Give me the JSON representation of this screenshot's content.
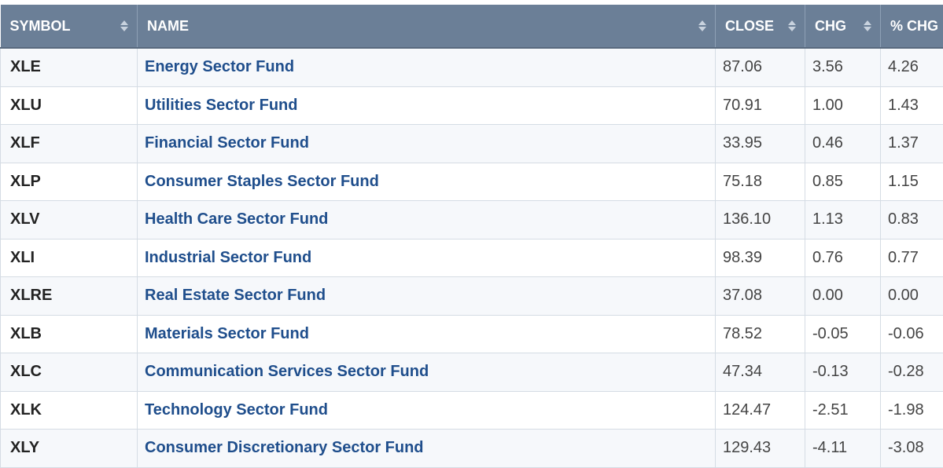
{
  "headers": {
    "symbol": "SYMBOL",
    "name": "NAME",
    "close": "CLOSE",
    "chg": "CHG",
    "pct_chg": "% CHG"
  },
  "rows": [
    {
      "symbol": "XLE",
      "name": "Energy Sector Fund",
      "close": "87.06",
      "chg": "3.56",
      "pct_chg": "4.26"
    },
    {
      "symbol": "XLU",
      "name": "Utilities Sector Fund",
      "close": "70.91",
      "chg": "1.00",
      "pct_chg": "1.43"
    },
    {
      "symbol": "XLF",
      "name": "Financial Sector Fund",
      "close": "33.95",
      "chg": "0.46",
      "pct_chg": "1.37"
    },
    {
      "symbol": "XLP",
      "name": "Consumer Staples Sector Fund",
      "close": "75.18",
      "chg": "0.85",
      "pct_chg": "1.15"
    },
    {
      "symbol": "XLV",
      "name": "Health Care Sector Fund",
      "close": "136.10",
      "chg": "1.13",
      "pct_chg": "0.83"
    },
    {
      "symbol": "XLI",
      "name": "Industrial Sector Fund",
      "close": "98.39",
      "chg": "0.76",
      "pct_chg": "0.77"
    },
    {
      "symbol": "XLRE",
      "name": "Real Estate Sector Fund",
      "close": "37.08",
      "chg": "0.00",
      "pct_chg": "0.00"
    },
    {
      "symbol": "XLB",
      "name": "Materials Sector Fund",
      "close": "78.52",
      "chg": "-0.05",
      "pct_chg": "-0.06"
    },
    {
      "symbol": "XLC",
      "name": "Communication Services Sector Fund",
      "close": "47.34",
      "chg": "-0.13",
      "pct_chg": "-0.28"
    },
    {
      "symbol": "XLK",
      "name": "Technology Sector Fund",
      "close": "124.47",
      "chg": "-2.51",
      "pct_chg": "-1.98"
    },
    {
      "symbol": "XLY",
      "name": "Consumer Discretionary Sector Fund",
      "close": "129.43",
      "chg": "-4.11",
      "pct_chg": "-3.08"
    }
  ],
  "colors": {
    "header_bg": "#6b7f97",
    "link": "#1f4e8c"
  },
  "icons": {
    "sort": "sort-icon"
  }
}
